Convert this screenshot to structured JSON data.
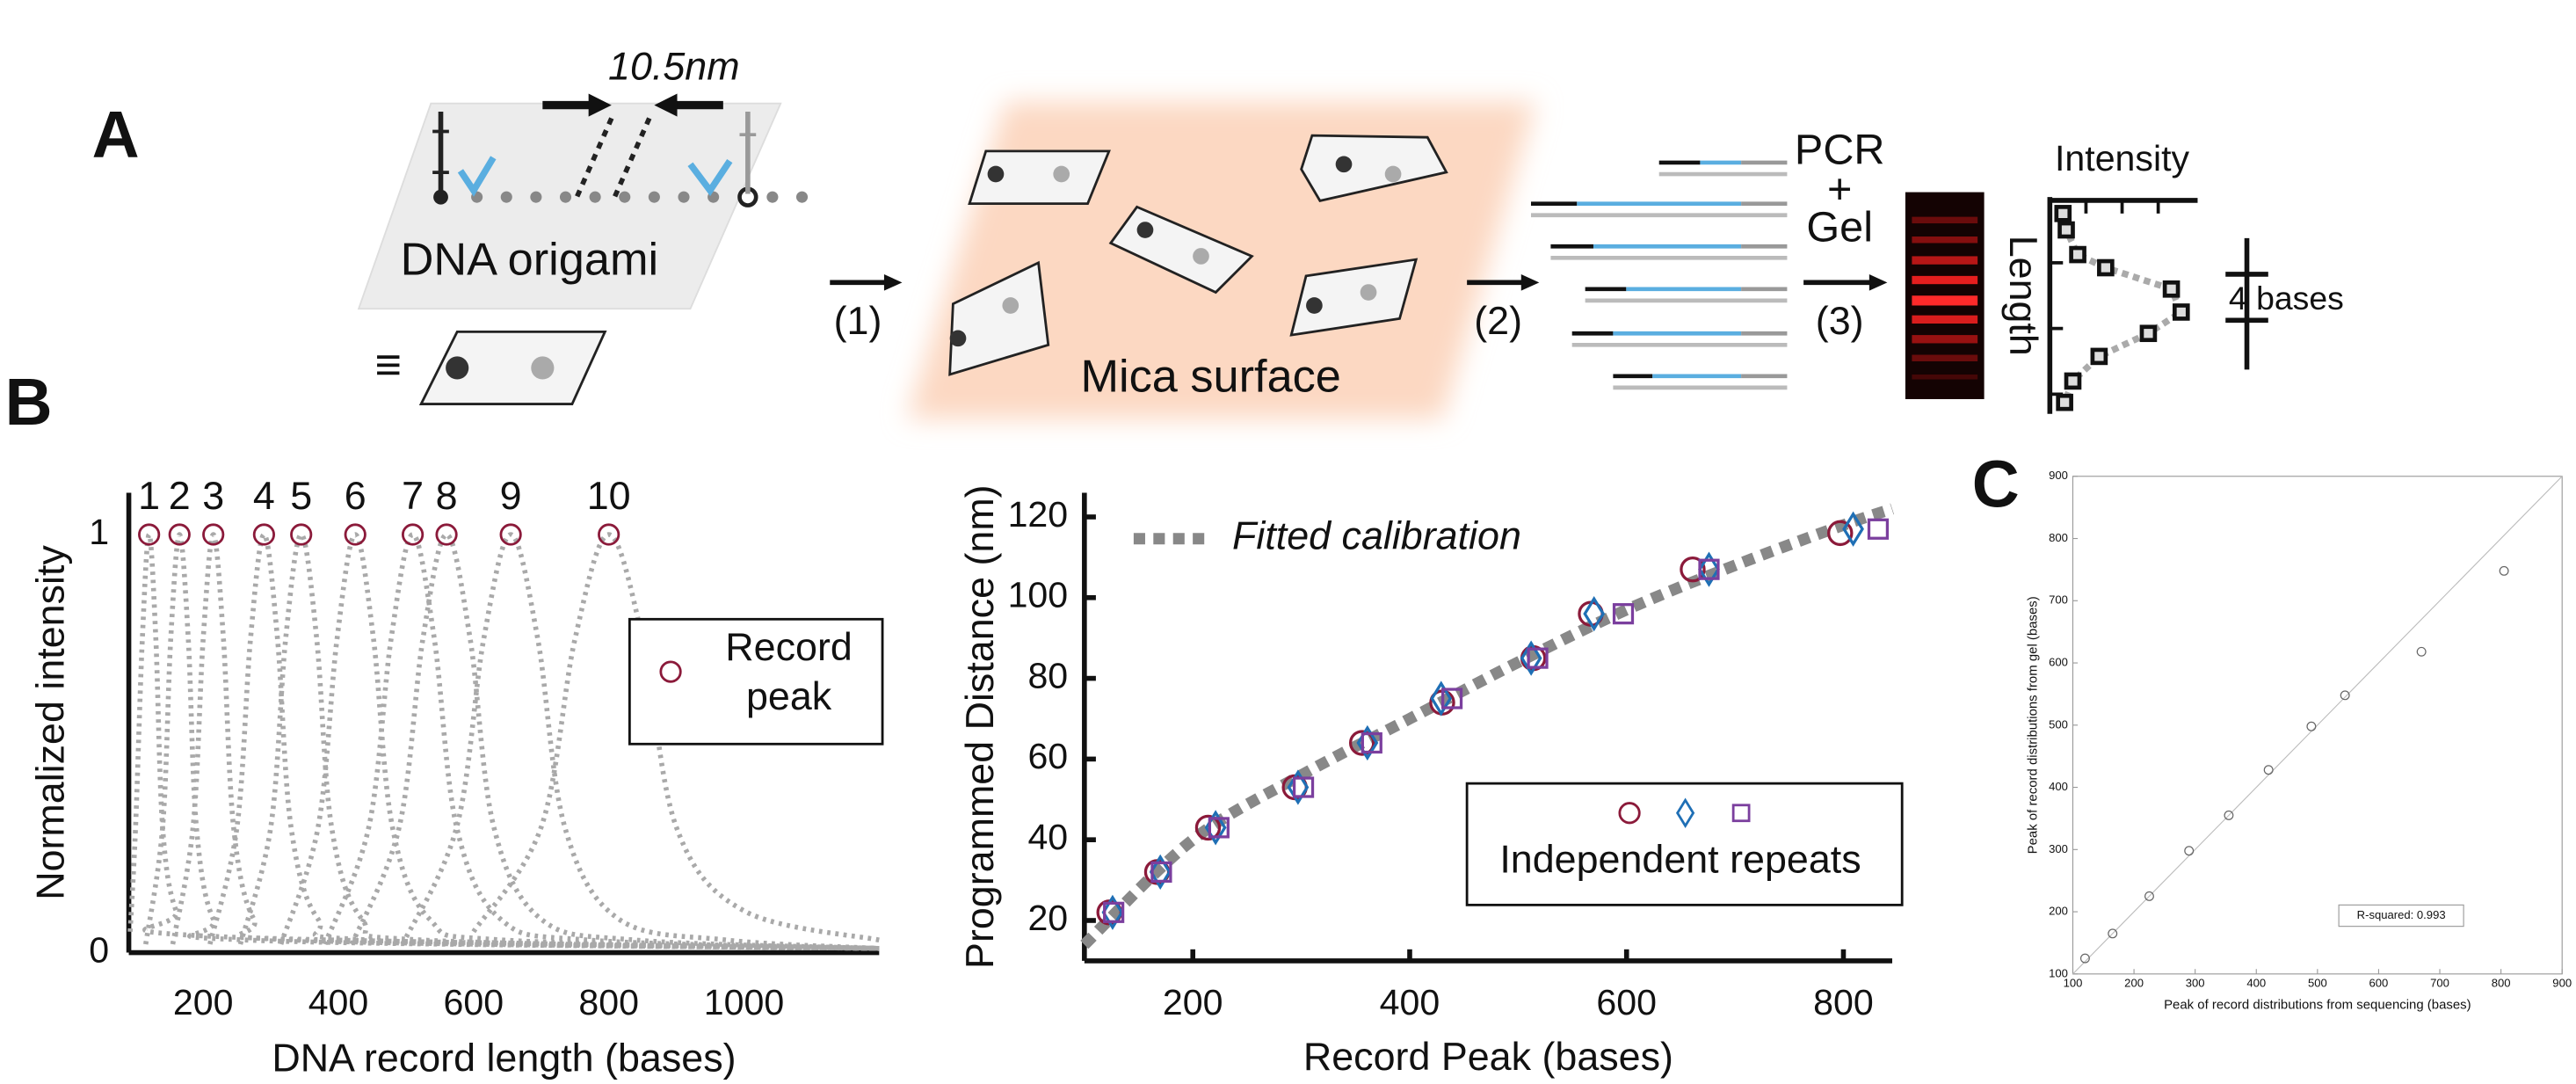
{
  "diagram": {
    "panel_labels": [
      "A",
      "B",
      "C"
    ],
    "spacing": "10.5nm",
    "origami": "DNA origami",
    "equiv": "≡",
    "step1": "(1)",
    "mica": "Mica surface",
    "step2": "(2)",
    "pcr": "PCR",
    "plus": "+",
    "gel": "Gel",
    "step3": "(3)",
    "intensity": "Intensity",
    "length": "Length",
    "bases": "4 bases"
  },
  "chart_data": [
    {
      "type": "line",
      "xlabel": "DNA record length (bases)",
      "ylabel": "Normalized intensity",
      "color": "#a9a9a9",
      "xlim": [
        90,
        1200
      ],
      "ylim": [
        0,
        1.1
      ],
      "xticks": [
        200,
        400,
        600,
        800,
        1000
      ],
      "yticks": [
        0,
        1
      ],
      "series": [
        {
          "x": [
            92,
            100,
            110,
            120,
            130,
            140,
            160,
            200,
            1200
          ],
          "values": [
            0.05,
            0.3,
            0.75,
            1,
            0.75,
            0.3,
            0.1,
            0.04,
            0.01
          ]
        },
        {
          "x": [
            115,
            140,
            152,
            165,
            178,
            190,
            215,
            265,
            1200
          ],
          "values": [
            0.02,
            0.3,
            0.75,
            1,
            0.75,
            0.3,
            0.08,
            0.03,
            0.01
          ]
        },
        {
          "x": [
            155,
            185,
            200,
            215,
            230,
            245,
            275,
            335,
            1200
          ],
          "values": [
            0.02,
            0.3,
            0.75,
            1,
            0.75,
            0.3,
            0.08,
            0.03,
            0.01
          ]
        },
        {
          "x": [
            210,
            250,
            270,
            290,
            310,
            330,
            370,
            450,
            1200
          ],
          "values": [
            0.02,
            0.3,
            0.75,
            1,
            0.75,
            0.3,
            0.08,
            0.03,
            0.01
          ]
        },
        {
          "x": [
            255,
            300,
            322,
            345,
            368,
            390,
            435,
            525,
            1200
          ],
          "values": [
            0.02,
            0.3,
            0.75,
            1,
            0.75,
            0.3,
            0.08,
            0.03,
            0.01
          ]
        },
        {
          "x": [
            315,
            370,
            398,
            425,
            452,
            480,
            535,
            645,
            1200
          ],
          "values": [
            0.02,
            0.3,
            0.75,
            1,
            0.75,
            0.3,
            0.08,
            0.03,
            0.01
          ]
        },
        {
          "x": [
            380,
            445,
            478,
            510,
            542,
            575,
            640,
            770,
            1200
          ],
          "values": [
            0.02,
            0.3,
            0.75,
            1,
            0.75,
            0.3,
            0.08,
            0.03,
            0.01
          ]
        },
        {
          "x": [
            420,
            490,
            525,
            560,
            595,
            630,
            700,
            840,
            1200
          ],
          "values": [
            0.02,
            0.3,
            0.75,
            1,
            0.75,
            0.3,
            0.08,
            0.03,
            0.01
          ]
        },
        {
          "x": [
            495,
            575,
            615,
            655,
            695,
            735,
            815,
            975,
            1200
          ],
          "values": [
            0.02,
            0.3,
            0.75,
            1,
            0.75,
            0.3,
            0.08,
            0.03,
            0.01
          ]
        },
        {
          "x": [
            600,
            700,
            750,
            800,
            850,
            900,
            1000,
            1200
          ],
          "values": [
            0.05,
            0.3,
            0.75,
            1,
            0.75,
            0.3,
            0.1,
            0.03
          ]
        }
      ],
      "peaks": {
        "name": "Record peak",
        "color": "#8b1a3a",
        "x": [
          120,
          165,
          215,
          290,
          345,
          425,
          510,
          560,
          655,
          800
        ],
        "values": [
          1,
          1,
          1,
          1,
          1,
          1,
          1,
          1,
          1,
          1
        ]
      },
      "peak_labels": [
        "1",
        "2",
        "3",
        "4",
        "5",
        "6",
        "7",
        "8",
        "9",
        "10"
      ]
    },
    {
      "type": "scatter",
      "xlabel": "Record Peak (bases)",
      "ylabel": "Programmed Distance (nm)",
      "xlim": [
        100,
        845
      ],
      "ylim": [
        10,
        126
      ],
      "xticks": [
        200,
        400,
        600,
        800
      ],
      "yticks": [
        20,
        40,
        60,
        80,
        100,
        120
      ],
      "fit": {
        "name": "Fitted calibration",
        "color": "#888888",
        "x": [
          100,
          200,
          300,
          400,
          500,
          600,
          700,
          800,
          845
        ],
        "values": [
          14,
          40,
          56,
          70,
          84,
          97,
          108,
          118,
          122
        ]
      },
      "series": [
        {
          "marker": "o",
          "color": "#8b1a3a",
          "x": [
            123,
            167,
            214,
            294,
            356,
            430,
            514,
            567,
            661,
            797
          ],
          "values": [
            22,
            32,
            43,
            53,
            64,
            74,
            85,
            96,
            107,
            116
          ]
        },
        {
          "marker": "d",
          "color": "#1f6fb5",
          "x": [
            126,
            170,
            221,
            297,
            361,
            429,
            512,
            570,
            676,
            809
          ],
          "values": [
            22,
            32,
            43,
            53,
            64,
            75,
            85,
            96,
            107,
            117
          ]
        },
        {
          "marker": "s",
          "color": "#7b3f9e",
          "x": [
            127,
            171,
            224,
            302,
            365,
            439,
            518,
            597,
            676,
            832
          ],
          "values": [
            22,
            32,
            43,
            53,
            64,
            75,
            85,
            96,
            107,
            117
          ]
        }
      ],
      "legend_label": "Independent repeats"
    },
    {
      "type": "scatter",
      "xlabel": "Peak of record distributions from sequencing (bases)",
      "ylabel": "Peak of record distributions from gel (bases)",
      "box": true,
      "xlim": [
        100,
        900
      ],
      "ylim": [
        100,
        900
      ],
      "xticks": [
        100,
        200,
        300,
        400,
        500,
        600,
        700,
        800,
        900
      ],
      "yticks": [
        100,
        200,
        300,
        400,
        500,
        600,
        700,
        800,
        900
      ],
      "reference_line": {
        "x": [
          100,
          900
        ],
        "values": [
          100,
          900
        ]
      },
      "series": [
        {
          "marker": "o",
          "color": "#666666",
          "x": [
            120,
            165,
            225,
            290,
            355,
            420,
            490,
            545,
            670,
            805
          ],
          "values": [
            125,
            165,
            225,
            298,
            355,
            428,
            498,
            548,
            618,
            748
          ]
        }
      ],
      "annotation": "R-squared: 0.993"
    }
  ]
}
